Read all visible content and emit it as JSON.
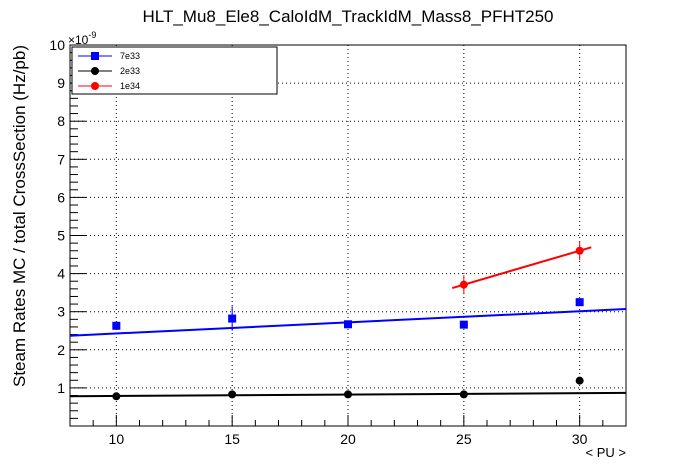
{
  "chart_data": {
    "type": "scatter",
    "title": "HLT_Mu8_Ele8_CaloIdM_TrackIdM_Mass8_PFHT250",
    "xlabel": "< PU >",
    "ylabel": "Steam Rates MC / total CrossSection (Hz/pb)",
    "y_exponent_label": "×10",
    "y_exponent_power": "-9",
    "xlim": [
      8,
      32
    ],
    "ylim": [
      0,
      10
    ],
    "x_ticks": [
      10,
      15,
      20,
      25,
      30
    ],
    "y_ticks": [
      0,
      1,
      2,
      3,
      4,
      5,
      6,
      7,
      8,
      9,
      10
    ],
    "x_tick_labels": [
      "10",
      "15",
      "20",
      "25",
      "30"
    ],
    "y_tick_labels": [
      "",
      "1",
      "2",
      "3",
      "4",
      "5",
      "6",
      "7",
      "8",
      "9",
      "10"
    ],
    "grid": true,
    "legend_position": "top-left",
    "series": [
      {
        "name": "7e33",
        "color": "#0000ff",
        "marker": "square",
        "x": [
          10,
          15,
          20,
          25,
          30
        ],
        "y": [
          2.63,
          2.82,
          2.67,
          2.66,
          3.25
        ],
        "yerr": [
          0.08,
          0.32,
          0.08,
          0.08,
          0.1
        ],
        "fit": {
          "x": [
            8,
            32
          ],
          "y": [
            2.37,
            3.07
          ]
        }
      },
      {
        "name": "2e33",
        "color": "#000000",
        "marker": "circle",
        "x": [
          10,
          15,
          20,
          25,
          30
        ],
        "y": [
          0.78,
          0.83,
          0.83,
          0.83,
          1.19
        ],
        "yerr": [
          0.03,
          0.03,
          0.03,
          0.03,
          0.05
        ],
        "fit": {
          "x": [
            8,
            32
          ],
          "y": [
            0.78,
            0.87
          ]
        }
      },
      {
        "name": "1e34",
        "color": "#ff0000",
        "marker": "circle",
        "x": [
          25,
          30
        ],
        "y": [
          3.71,
          4.6
        ],
        "yerr": [
          0.25,
          0.25
        ],
        "fit": {
          "x": [
            24.5,
            30.5
          ],
          "y": [
            3.62,
            4.69
          ]
        }
      }
    ]
  }
}
